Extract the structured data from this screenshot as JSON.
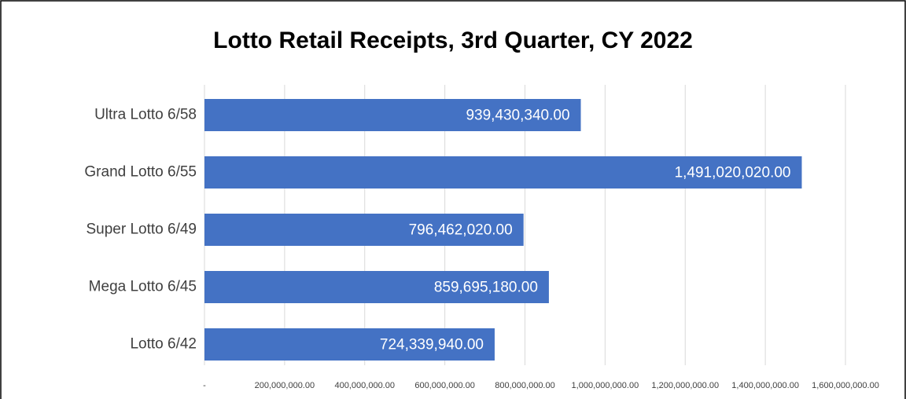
{
  "chart_data": {
    "type": "bar",
    "orientation": "horizontal",
    "title": "Lotto Retail Receipts, 3rd Quarter, CY 2022",
    "categories": [
      "Ultra Lotto 6/58",
      "Grand Lotto 6/55",
      "Super Lotto 6/49",
      "Mega Lotto 6/45",
      "Lotto 6/42"
    ],
    "values": [
      939430340,
      1491020020,
      796462020,
      859695180,
      724339940
    ],
    "value_labels": [
      "939,430,340.00",
      "1,491,020,020.00",
      "796,462,020.00",
      "859,695,180.00",
      "724,339,940.00"
    ],
    "color": "#4472c4",
    "xlim": [
      0,
      1600000000
    ],
    "xticks": [
      {
        "value": 0,
        "label": "-"
      },
      {
        "value": 200000000,
        "label": "200,000,000.00"
      },
      {
        "value": 400000000,
        "label": "400,000,000.00"
      },
      {
        "value": 600000000,
        "label": "600,000,000.00"
      },
      {
        "value": 800000000,
        "label": "800,000,000.00"
      },
      {
        "value": 1000000000,
        "label": "1,000,000,000.00"
      },
      {
        "value": 1200000000,
        "label": "1,200,000,000.00"
      },
      {
        "value": 1400000000,
        "label": "1,400,000,000.00"
      },
      {
        "value": 1600000000,
        "label": "1,600,000,000.00"
      }
    ],
    "grid": true
  }
}
